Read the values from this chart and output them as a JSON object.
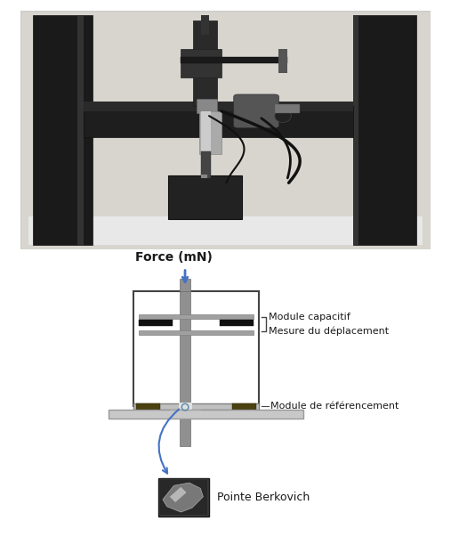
{
  "fig_width": 5.07,
  "fig_height": 6.03,
  "dpi": 100,
  "bg_color": "#ffffff",
  "force_label": "Force (mN)",
  "label_module_capacitif": "Module capacitif",
  "label_mesure": "Mesure du déplacement",
  "label_module_ref": "Module de référencement",
  "label_pointe": "Pointe Berkovich",
  "arrow_color": "#4472c4",
  "text_color": "#1a1a1a",
  "box_edge": "#444444",
  "dark_olive": "#4a4010",
  "bracket_color": "#444444",
  "photo_border_color": "#cccccc",
  "photo_bg": "#d8d5ce",
  "pillar_color": "#1a1a1a",
  "crossbar_color": "#222222",
  "shaft_silver": "#a0a0a0",
  "box_dark": "#2a2a2a",
  "camera_silver": "#b0b0b0"
}
